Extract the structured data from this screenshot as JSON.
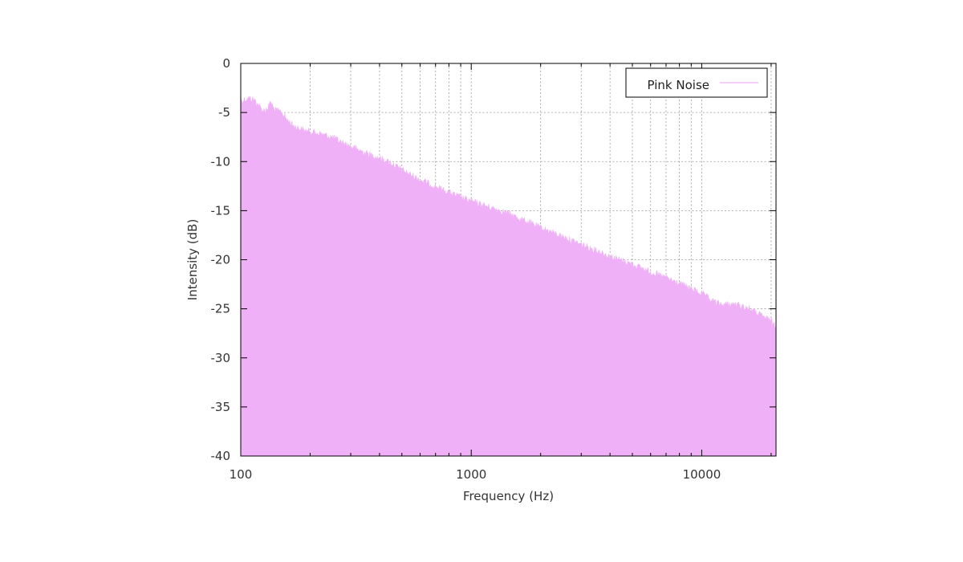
{
  "chart_data": {
    "type": "area",
    "title": "",
    "xlabel": "Frequency (Hz)",
    "ylabel": "Intensity (dB)",
    "x_scale": "log",
    "xlim": [
      100,
      21000
    ],
    "ylim": [
      -40,
      0
    ],
    "x_ticks": [
      {
        "value": 100,
        "label": "100"
      },
      {
        "value": 1000,
        "label": "1000"
      },
      {
        "value": 10000,
        "label": "10000"
      }
    ],
    "y_ticks": [
      {
        "value": 0,
        "label": "0"
      },
      {
        "value": -5,
        "label": "-5"
      },
      {
        "value": -10,
        "label": "-10"
      },
      {
        "value": -15,
        "label": "-15"
      },
      {
        "value": -20,
        "label": "-20"
      },
      {
        "value": -25,
        "label": "-25"
      },
      {
        "value": -30,
        "label": "-30"
      },
      {
        "value": -35,
        "label": "-35"
      },
      {
        "value": -40,
        "label": "-40"
      }
    ],
    "grid": true,
    "legend_position": "top-right",
    "series": [
      {
        "name": "Pink Noise",
        "color": "#f0b0f8",
        "baseline": -40,
        "x": [
          100,
          105,
          110,
          115,
          120,
          125,
          130,
          135,
          140,
          150,
          160,
          170,
          180,
          190,
          200,
          220,
          250,
          280,
          300,
          350,
          400,
          450,
          500,
          600,
          700,
          800,
          900,
          1000,
          1200,
          1400,
          1600,
          1800,
          2000,
          2500,
          3000,
          3500,
          4000,
          5000,
          6000,
          7000,
          8000,
          9000,
          10000,
          11000,
          12000,
          14000,
          16000,
          18000,
          20000,
          21000
        ],
        "values": [
          -3.5,
          -3.3,
          -3.2,
          -3.4,
          -4.0,
          -4.5,
          -4.3,
          -3.6,
          -4.4,
          -4.6,
          -5.5,
          -6.0,
          -6.3,
          -6.5,
          -6.6,
          -6.8,
          -7.2,
          -7.8,
          -8.1,
          -8.8,
          -9.3,
          -9.8,
          -10.5,
          -11.5,
          -12.2,
          -12.8,
          -13.3,
          -13.7,
          -14.3,
          -14.8,
          -15.4,
          -15.9,
          -16.4,
          -17.3,
          -18.1,
          -18.7,
          -19.3,
          -20.1,
          -20.9,
          -21.5,
          -22.1,
          -22.6,
          -23.1,
          -23.8,
          -24.2,
          -24.2,
          -24.6,
          -25.3,
          -25.9,
          -26.4
        ]
      }
    ]
  }
}
